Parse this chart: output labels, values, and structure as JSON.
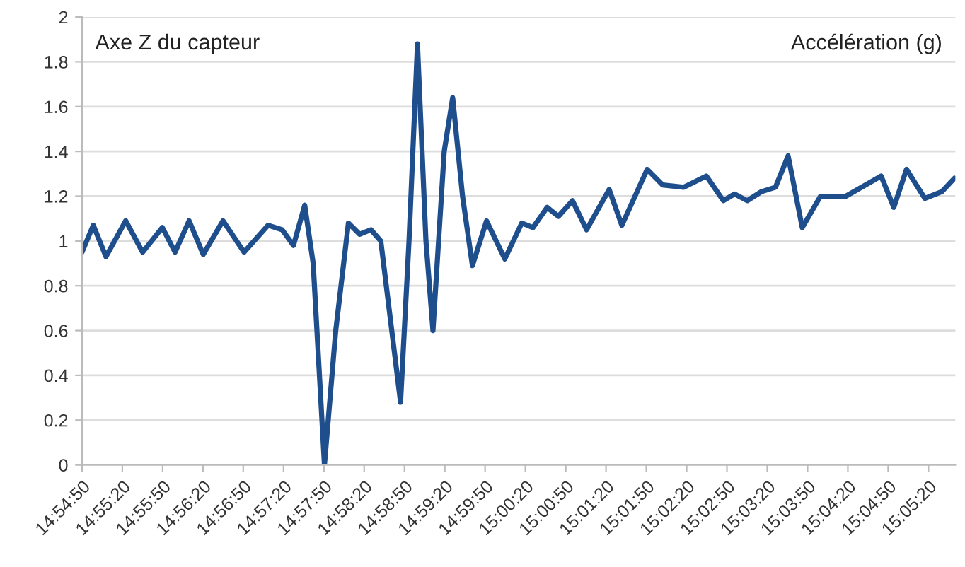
{
  "chart_data": {
    "type": "line",
    "annotations": [
      "Axe Z du capteur",
      "Accélération (g)"
    ],
    "series": [
      {
        "color": "#1f4e8c",
        "x": [
          14.91389,
          14.91622,
          14.91884,
          14.92292,
          14.92642,
          14.9305,
          14.93312,
          14.93603,
          14.93895,
          14.94303,
          14.9474,
          14.95235,
          14.95527,
          14.9576,
          14.95993,
          14.96168,
          14.96401,
          14.96634,
          14.96896,
          14.97129,
          14.97362,
          14.97566,
          14.97974,
          14.98149,
          14.98324,
          14.98499,
          14.98644,
          14.98877,
          14.99052,
          14.99256,
          14.9946,
          14.99752,
          15.0013,
          15.0048,
          15.00713,
          15.01005,
          15.01238,
          15.01529,
          15.0182,
          15.02287,
          15.02549,
          15.03073,
          15.03394,
          15.03831,
          15.04297,
          15.04647,
          15.0488,
          15.05142,
          15.05434,
          15.05725,
          15.05987,
          15.06279,
          15.06657,
          15.07182,
          15.0791,
          15.08172,
          15.08435,
          15.08814,
          15.09163,
          15.09425
        ],
        "values": [
          0.95,
          1.07,
          0.93,
          1.09,
          0.95,
          1.06,
          0.95,
          1.09,
          0.94,
          1.09,
          0.95,
          1.07,
          1.05,
          0.98,
          1.16,
          0.9,
          0.0,
          0.6,
          1.08,
          1.03,
          1.05,
          1.0,
          0.28,
          1.0,
          1.88,
          1.0,
          0.6,
          1.4,
          1.64,
          1.2,
          0.89,
          1.09,
          0.92,
          1.08,
          1.06,
          1.15,
          1.11,
          1.18,
          1.05,
          1.23,
          1.07,
          1.32,
          1.25,
          1.24,
          1.29,
          1.18,
          1.21,
          1.18,
          1.22,
          1.24,
          1.38,
          1.06,
          1.2,
          1.2,
          1.29,
          1.15,
          1.32,
          1.19,
          1.22,
          1.28
        ]
      }
    ],
    "xlim": [
      14.913889,
      15.094444
    ],
    "xticks": [
      {
        "value": 14.913889,
        "label": "14:54:50"
      },
      {
        "value": 14.922222,
        "label": "14:55:20"
      },
      {
        "value": 14.930556,
        "label": "14:55:50"
      },
      {
        "value": 14.938889,
        "label": "14:56:20"
      },
      {
        "value": 14.947222,
        "label": "14:56:50"
      },
      {
        "value": 14.955556,
        "label": "14:57:20"
      },
      {
        "value": 14.963889,
        "label": "14:57:50"
      },
      {
        "value": 14.972222,
        "label": "14:58:20"
      },
      {
        "value": 14.980556,
        "label": "14:58:50"
      },
      {
        "value": 14.988889,
        "label": "14:59:20"
      },
      {
        "value": 14.997222,
        "label": "14:59:50"
      },
      {
        "value": 15.005556,
        "label": "15:00:20"
      },
      {
        "value": 15.013889,
        "label": "15:00:50"
      },
      {
        "value": 15.022222,
        "label": "15:01:20"
      },
      {
        "value": 15.030556,
        "label": "15:01:50"
      },
      {
        "value": 15.038889,
        "label": "15:02:20"
      },
      {
        "value": 15.047222,
        "label": "15:02:50"
      },
      {
        "value": 15.055556,
        "label": "15:03:20"
      },
      {
        "value": 15.063889,
        "label": "15:03:50"
      },
      {
        "value": 15.072222,
        "label": "15:04:20"
      },
      {
        "value": 15.080556,
        "label": "15:04:50"
      },
      {
        "value": 15.088889,
        "label": "15:05:20"
      }
    ],
    "ylim": [
      0,
      2
    ],
    "yticks": [
      0,
      0.2,
      0.4,
      0.6,
      0.8,
      1,
      1.2,
      1.4,
      1.6,
      1.8,
      2
    ],
    "grid": "y",
    "marker": "none",
    "line_style": "solid",
    "legend": false
  }
}
